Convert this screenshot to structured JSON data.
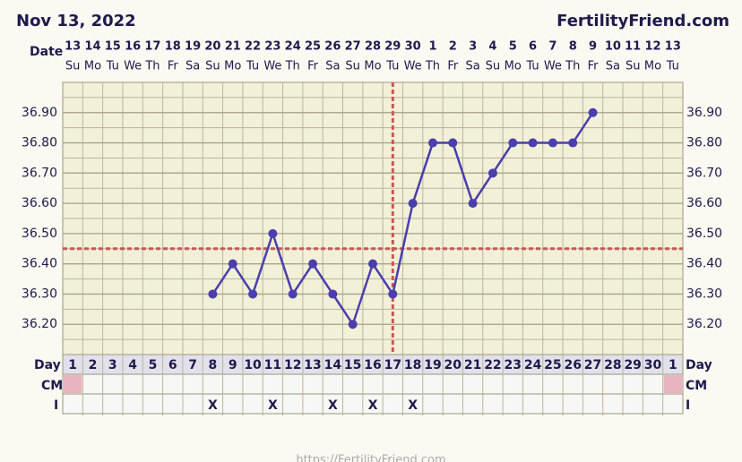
{
  "chart_data": {
    "type": "line",
    "title": "Nov 13, 2022",
    "site": "FertilityFriend.com",
    "footer": "https://FertilityFriend.com",
    "date_label": "Date",
    "day_label": "Day",
    "cm_label": "CM",
    "i_label": "I",
    "dates": [
      "13",
      "14",
      "15",
      "16",
      "17",
      "18",
      "19",
      "20",
      "21",
      "22",
      "23",
      "24",
      "25",
      "26",
      "27",
      "28",
      "29",
      "30",
      "1",
      "2",
      "3",
      "4",
      "5",
      "6",
      "7",
      "8",
      "9",
      "10",
      "11",
      "12",
      "13"
    ],
    "weekdays": [
      "Su",
      "Mo",
      "Tu",
      "We",
      "Th",
      "Fr",
      "Sa",
      "Su",
      "Mo",
      "Tu",
      "We",
      "Th",
      "Fr",
      "Sa",
      "Su",
      "Mo",
      "Tu",
      "We",
      "Th",
      "Fr",
      "Sa",
      "Su",
      "Mo",
      "Tu",
      "We",
      "Th",
      "Fr",
      "Sa",
      "Su",
      "Mo",
      "Tu"
    ],
    "cycle_days": [
      1,
      2,
      3,
      4,
      5,
      6,
      7,
      8,
      9,
      10,
      11,
      12,
      13,
      14,
      15,
      16,
      17,
      18,
      19,
      20,
      21,
      22,
      23,
      24,
      25,
      26,
      27,
      28,
      29,
      30,
      1
    ],
    "values": [
      null,
      null,
      null,
      null,
      null,
      null,
      null,
      36.3,
      36.4,
      36.3,
      36.5,
      36.3,
      36.4,
      36.3,
      36.2,
      36.4,
      36.3,
      36.6,
      36.8,
      36.8,
      36.6,
      36.7,
      36.8,
      36.8,
      36.8,
      36.8,
      36.9,
      null,
      null,
      null,
      null
    ],
    "color": "#4a3fae",
    "coverline": 36.45,
    "coverline_color": "#c65a52",
    "ovulation_day": 17,
    "period": [
      true,
      false,
      false,
      false,
      false,
      false,
      false,
      false,
      false,
      false,
      false,
      false,
      false,
      false,
      false,
      false,
      false,
      false,
      false,
      false,
      false,
      false,
      false,
      false,
      false,
      false,
      false,
      false,
      false,
      false,
      true
    ],
    "intercourse": [
      null,
      null,
      null,
      null,
      null,
      null,
      null,
      "X",
      null,
      null,
      "X",
      null,
      null,
      "X",
      null,
      "X",
      null,
      "X",
      null,
      null,
      null,
      null,
      null,
      null,
      null,
      null,
      null,
      null,
      null,
      null,
      null
    ],
    "ylim": [
      36.1,
      37.0
    ],
    "yticks": [
      {
        "value": 36.2,
        "label": "36.20"
      },
      {
        "value": 36.3,
        "label": "36.30"
      },
      {
        "value": 36.4,
        "label": "36.40"
      },
      {
        "value": 36.5,
        "label": "36.50"
      },
      {
        "value": 36.6,
        "label": "36.60"
      },
      {
        "value": 36.7,
        "label": "36.70"
      },
      {
        "value": 36.8,
        "label": "36.80"
      },
      {
        "value": 36.9,
        "label": "36.90"
      }
    ],
    "grid": true
  }
}
